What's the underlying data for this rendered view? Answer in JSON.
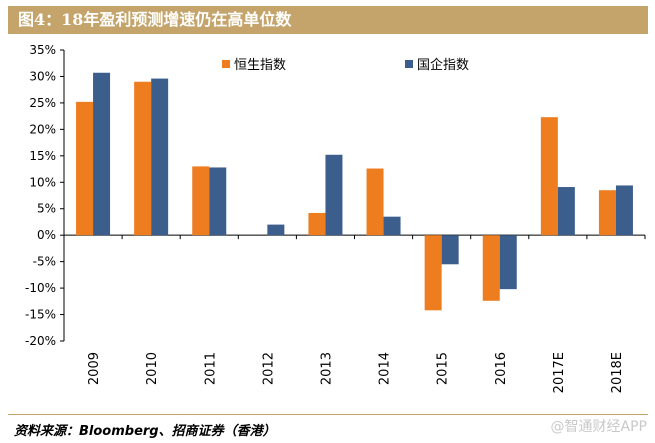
{
  "header": {
    "title": "图4：18年盈利预测增速仍在高单位数"
  },
  "footer": {
    "source": "资料来源：Bloomberg、招商证券（香港）",
    "watermark": "@智通财经APP"
  },
  "colors": {
    "series_1": "#ed7d1f",
    "series_2": "#3c5e8c",
    "title_bg": "#c4a46a"
  },
  "chart_data": {
    "type": "bar",
    "title": "图4：18年盈利预测增速仍在高单位数",
    "categories": [
      "2009",
      "2010",
      "2011",
      "2012",
      "2013",
      "2014",
      "2015",
      "2016",
      "2017E",
      "2018E"
    ],
    "series": [
      {
        "name": "恒生指数",
        "color": "#ed7d1f",
        "values": [
          25.2,
          29.0,
          13.0,
          0,
          4.2,
          12.6,
          -14.2,
          -12.4,
          22.3,
          8.5
        ]
      },
      {
        "name": "国企指数",
        "color": "#3c5e8c",
        "values": [
          30.7,
          29.6,
          12.8,
          2.0,
          15.2,
          3.5,
          -5.5,
          -10.2,
          9.1,
          9.4
        ]
      }
    ],
    "ylim": [
      -20,
      35
    ],
    "yticks": [
      35,
      30,
      25,
      20,
      15,
      10,
      5,
      0,
      -5,
      -10,
      -15,
      -20
    ],
    "ytick_labels": [
      "35%",
      "30%",
      "25%",
      "20%",
      "15%",
      "10%",
      "5%",
      "0%",
      "-5%",
      "-10%",
      "-15%",
      "-20%"
    ],
    "xlabel": "",
    "ylabel": "",
    "legend_position": "top"
  }
}
